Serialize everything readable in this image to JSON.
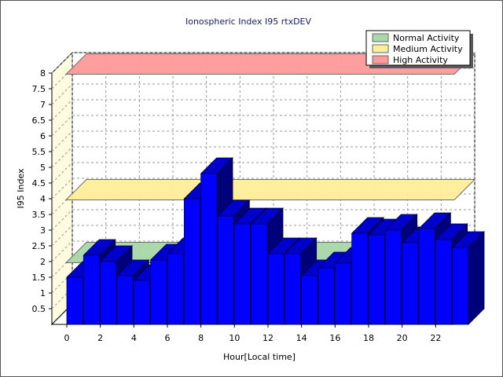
{
  "chart_data": {
    "type": "bar",
    "title": "Ionospheric Index I95 rtxDEV",
    "xlabel": "Hour[Local time]",
    "ylabel": "I95 Index",
    "ylim": [
      0,
      8
    ],
    "y_ticks": [
      "0.5",
      "1",
      "1.5",
      "2",
      "2.5",
      "3",
      "3.5",
      "4",
      "4.5",
      "5",
      "5.5",
      "6",
      "6.5",
      "7",
      "7.5",
      "8"
    ],
    "x_ticks": [
      "0",
      "2",
      "4",
      "6",
      "8",
      "10",
      "12",
      "14",
      "16",
      "18",
      "20",
      "22"
    ],
    "categories": [
      0,
      1,
      2,
      3,
      4,
      5,
      6,
      7,
      8,
      9,
      10,
      11,
      12,
      13,
      14,
      15,
      16,
      17,
      18,
      19,
      20,
      21,
      22,
      23
    ],
    "values": [
      1.5,
      2.2,
      2.0,
      1.55,
      1.4,
      2.05,
      2.25,
      4.0,
      4.8,
      3.45,
      3.2,
      3.2,
      2.25,
      2.25,
      1.55,
      1.8,
      1.95,
      2.9,
      2.85,
      3.0,
      2.6,
      3.05,
      2.7,
      2.45
    ],
    "bands": [
      {
        "name": "Normal Activity",
        "value": 2.0,
        "color": "#a8d8a8"
      },
      {
        "name": "Medium Activity",
        "value": 4.0,
        "color": "#ffee99"
      },
      {
        "name": "High Activity",
        "value": 8.0,
        "color": "#ff9999"
      }
    ],
    "bar_color": "#0000ff",
    "legend_position": "top-right",
    "grid": true
  }
}
